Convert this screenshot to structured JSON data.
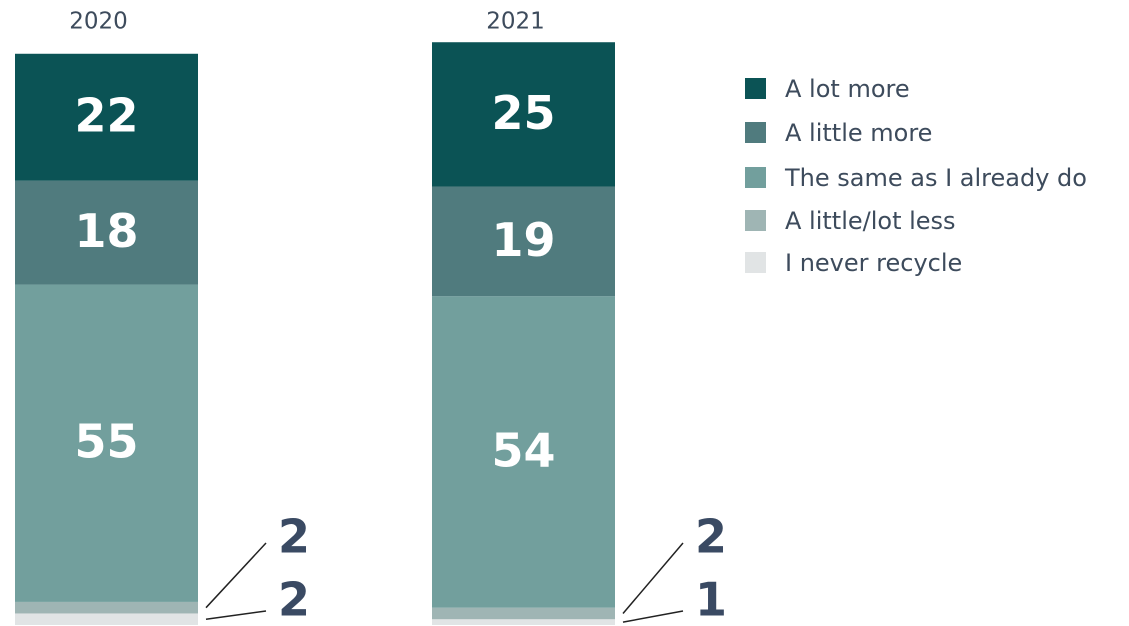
{
  "chart_data": {
    "type": "stacked_bar",
    "categories": [
      "2020",
      "2021"
    ],
    "series": [
      {
        "name": "A lot more",
        "color": "#0b5355",
        "values": [
          22,
          25
        ]
      },
      {
        "name": "A little more",
        "color": "#507b7e",
        "values": [
          18,
          19
        ]
      },
      {
        "name": "The same as I already do",
        "color": "#729f9d",
        "values": [
          55,
          54
        ]
      },
      {
        "name": "A little/lot less",
        "color": "#9fb5b4",
        "values": [
          2,
          2
        ]
      },
      {
        "name": "I never recycle",
        "color": "#e1e4e5",
        "values": [
          2,
          1
        ]
      }
    ]
  }
}
